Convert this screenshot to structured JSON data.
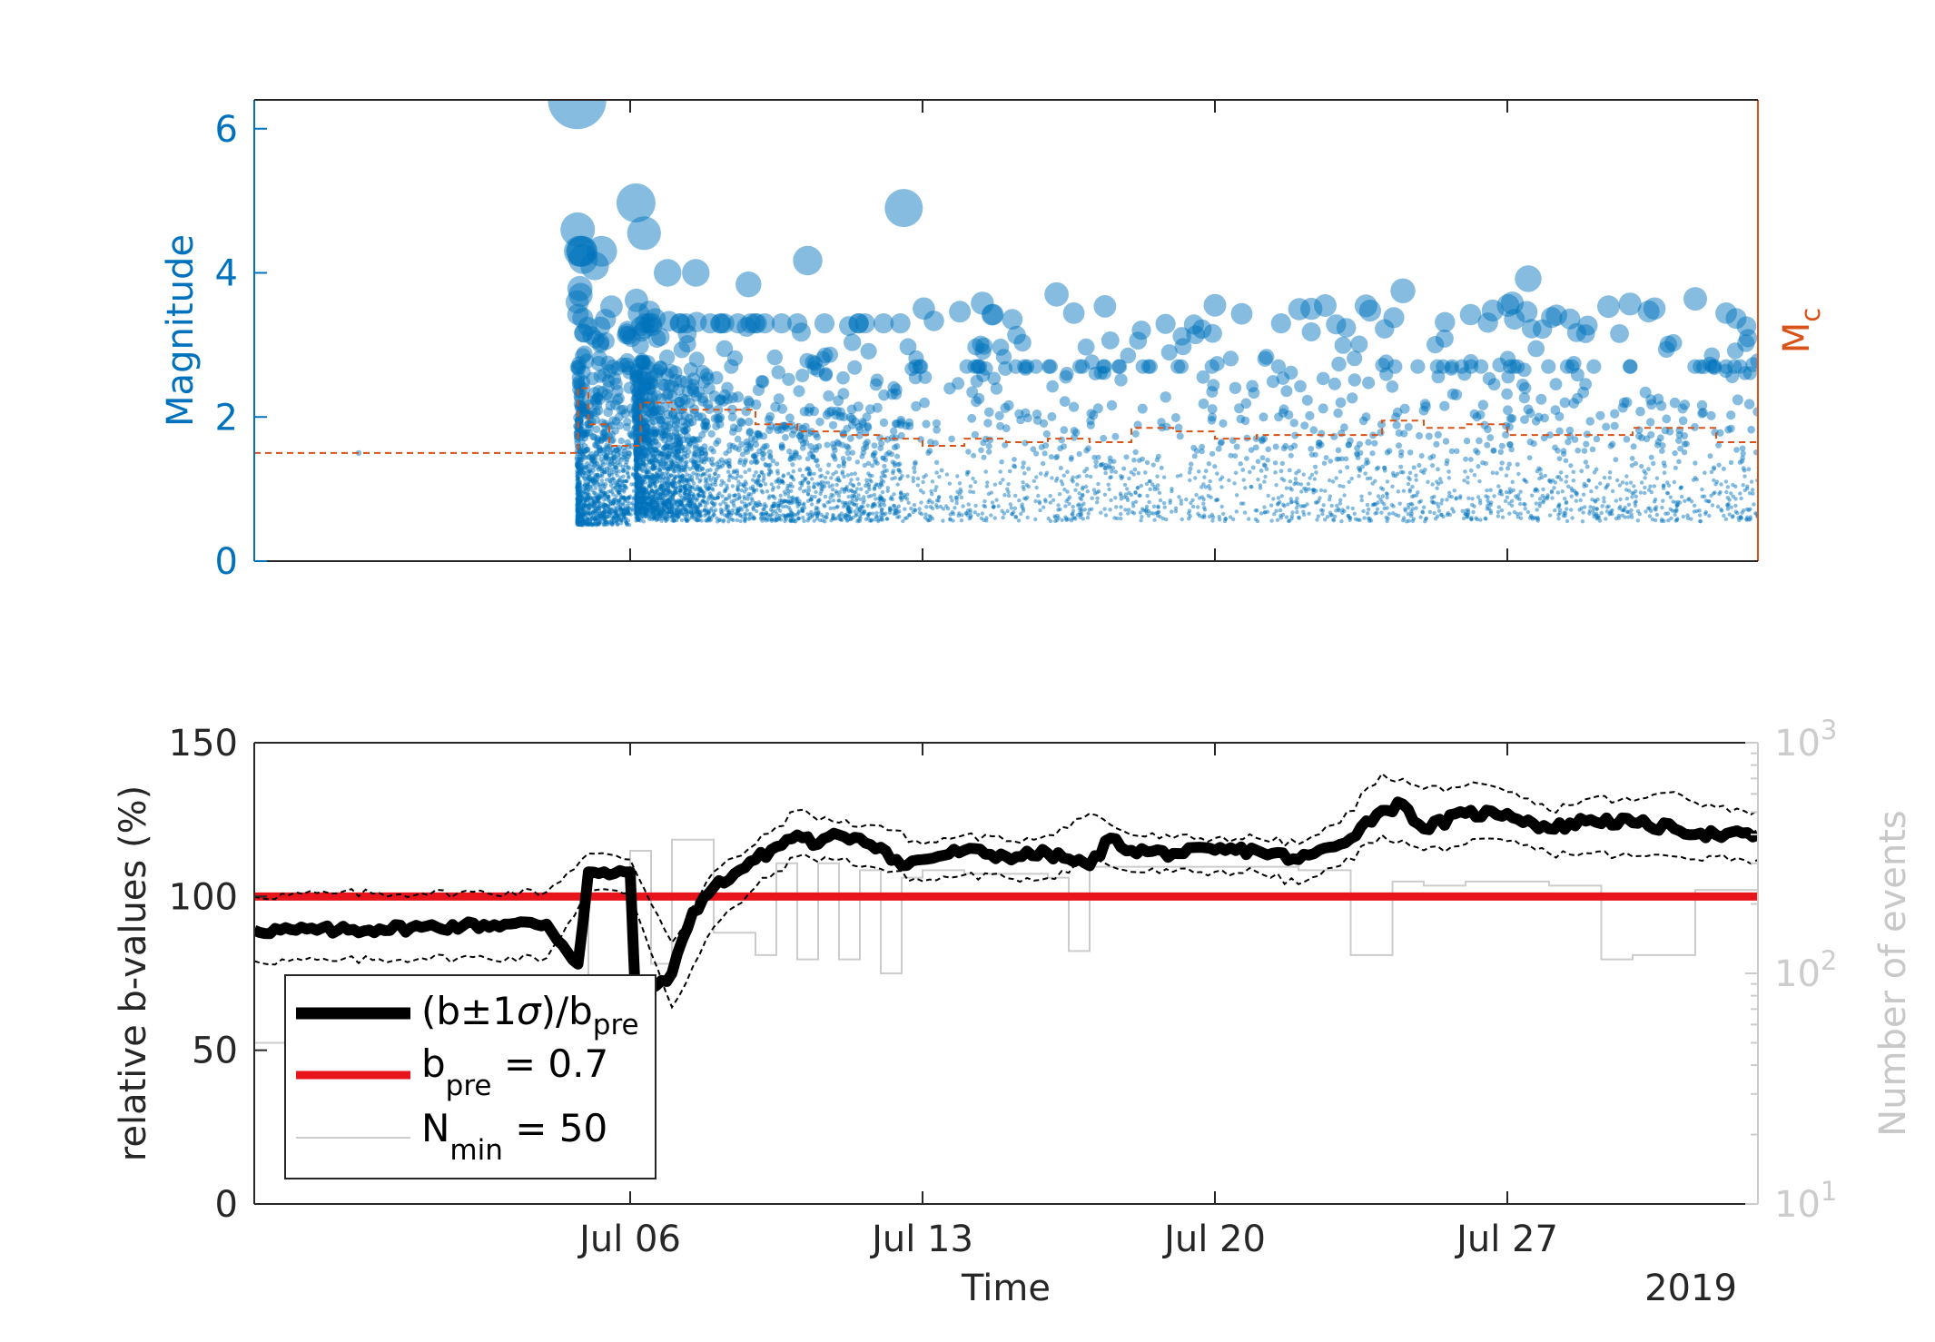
{
  "colors": {
    "magnitude": "#0072bd",
    "mc": "#d95319",
    "b_value": "#000000",
    "b_pre": "#e8141b",
    "n_events": "#cccccc",
    "axis_dark": "#262626"
  },
  "chart_data": [
    {
      "type": "scatter",
      "panel": "top",
      "ylabel": "Magnitude",
      "y2label": "M",
      "y2label_sub": "c",
      "ylim": [
        0,
        6.4
      ],
      "yticks": [
        "0",
        "2",
        "4",
        "6"
      ],
      "xlim": [
        "2019-06-27",
        "2019-08-02"
      ],
      "x_tick_labels_shown": false,
      "series": [
        {
          "role": "earthquake_magnitudes",
          "marker": "circle, size proportional to magnitude, semi-transparent",
          "notable_points": [
            {
              "x": "2019-07-04T17:33",
              "y": 6.4
            },
            {
              "x": "2019-07-06T03:19",
              "y": 4.97
            },
            {
              "x": "2019-07-04T17:50",
              "y": 4.6
            },
            {
              "x": "2019-07-06T08:00",
              "y": 4.55
            },
            {
              "x": "2019-07-12T13:11",
              "y": 4.9
            },
            {
              "x": "2019-07-10T06:00",
              "y": 4.17
            },
            {
              "x": "2019-07-08T20:00",
              "y": 3.84
            },
            {
              "x": "2019-07-16T05:00",
              "y": 3.7
            },
            {
              "x": "2019-07-24T12:00",
              "y": 3.75
            },
            {
              "x": "2019-07-27T12:00",
              "y": 3.92
            },
            {
              "x": "2019-07-31T12:00",
              "y": 3.64
            },
            {
              "x": "2019-07-20T00:00",
              "y": 3.55
            },
            {
              "x": "2019-07-21T14:00",
              "y": 3.3
            },
            {
              "x": "2019-06-29T12:00",
              "y": 1.5
            }
          ],
          "clusters": [
            {
              "x_range": [
                "2019-07-04T17",
                "2019-07-05T12"
              ],
              "y_range": [
                0.5,
                4.6
              ]
            },
            {
              "x_range": [
                "2019-07-06T03",
                "2019-07-12T12"
              ],
              "y_range": [
                0.5,
                3.8
              ]
            },
            {
              "x_range": [
                "2019-07-12T12",
                "2019-08-02"
              ],
              "y_range": [
                0.5,
                3.0
              ]
            }
          ]
        },
        {
          "role": "completeness_magnitude_Mc",
          "style": "dashed",
          "x": [
            "2019-06-27",
            "2019-07-04T17",
            "2019-07-04T18",
            "2019-07-05",
            "2019-07-05T12",
            "2019-07-06T03",
            "2019-07-06T06",
            "2019-07-07",
            "2019-07-08",
            "2019-07-09",
            "2019-07-10",
            "2019-07-11",
            "2019-07-12",
            "2019-07-13",
            "2019-07-14",
            "2019-07-15",
            "2019-07-16",
            "2019-07-17",
            "2019-07-18",
            "2019-07-19",
            "2019-07-20",
            "2019-07-21",
            "2019-07-22",
            "2019-07-23",
            "2019-07-24",
            "2019-07-25",
            "2019-07-26",
            "2019-07-27",
            "2019-07-28",
            "2019-07-29",
            "2019-07-30",
            "2019-07-31",
            "2019-08-01",
            "2019-08-02"
          ],
          "y": [
            1.5,
            1.5,
            2.4,
            1.9,
            1.6,
            1.6,
            2.2,
            2.1,
            2.1,
            1.9,
            1.8,
            1.75,
            1.7,
            1.6,
            1.7,
            1.65,
            1.7,
            1.65,
            1.85,
            1.8,
            1.7,
            1.75,
            1.75,
            1.75,
            1.95,
            1.85,
            1.9,
            1.75,
            1.75,
            1.75,
            1.85,
            1.85,
            1.65,
            1.6
          ]
        }
      ]
    },
    {
      "type": "line",
      "panel": "bottom",
      "xlabel": "Time",
      "year_label": "2019",
      "x_ticks": [
        "Jul 06",
        "Jul 13",
        "Jul 20",
        "Jul 27"
      ],
      "ylabel": "relative b-values (%)",
      "ylim": [
        0,
        150
      ],
      "yticks": [
        "0",
        "50",
        "100",
        "150"
      ],
      "y2label": "Number of events",
      "y2scale": "log",
      "y2lim": [
        10,
        1000
      ],
      "y2ticks": [
        {
          "base": "10",
          "exp": "1"
        },
        {
          "base": "10",
          "exp": "2"
        },
        {
          "base": "10",
          "exp": "3"
        }
      ],
      "xlim": [
        "2019-06-27",
        "2019-08-02"
      ],
      "legend": {
        "placement": "bottom-left",
        "entries": [
          {
            "pre": "(b±1",
            "sym": "σ",
            "mid": ")/b",
            "sub": "pre",
            "post": ""
          },
          {
            "pre": "b",
            "sym": "",
            "mid": "",
            "sub": "pre",
            "post": " = 0.7"
          },
          {
            "pre": "N",
            "sym": "",
            "mid": "",
            "sub": "min",
            "post": " = 50"
          }
        ]
      },
      "series": [
        {
          "role": "relative_b_value",
          "x": [
            "2019-06-27",
            "2019-06-28",
            "2019-06-29",
            "2019-06-30",
            "2019-07-01",
            "2019-07-02",
            "2019-07-03",
            "2019-07-04",
            "2019-07-04T18",
            "2019-07-05",
            "2019-07-05T12",
            "2019-07-06",
            "2019-07-06T04",
            "2019-07-06T12",
            "2019-07-07",
            "2019-07-07T12",
            "2019-07-08",
            "2019-07-09",
            "2019-07-10",
            "2019-07-10T12",
            "2019-07-11",
            "2019-07-11T12",
            "2019-07-12",
            "2019-07-12T12",
            "2019-07-13",
            "2019-07-14",
            "2019-07-15",
            "2019-07-16",
            "2019-07-17",
            "2019-07-17T12",
            "2019-07-18",
            "2019-07-19",
            "2019-07-20",
            "2019-07-21",
            "2019-07-22",
            "2019-07-23",
            "2019-07-24",
            "2019-07-24T12",
            "2019-07-25",
            "2019-07-26",
            "2019-07-27",
            "2019-07-28",
            "2019-07-29",
            "2019-07-30",
            "2019-07-31",
            "2019-08-01",
            "2019-08-02"
          ],
          "y": [
            89,
            89,
            89,
            89.5,
            90,
            90.5,
            91,
            91,
            78,
            108,
            107,
            108,
            55,
            70,
            75,
            95,
            103,
            112,
            120,
            117,
            120,
            119,
            116,
            110,
            112,
            115,
            113,
            114,
            110,
            119,
            115,
            114,
            115,
            115,
            112,
            117,
            128,
            130,
            122,
            127,
            127,
            122,
            125,
            124,
            122,
            120,
            120
          ]
        },
        {
          "role": "upper_1sigma",
          "style": "dashed",
          "x": [
            "2019-06-27",
            "2019-06-29",
            "2019-07-01",
            "2019-07-04",
            "2019-07-05",
            "2019-07-06",
            "2019-07-07",
            "2019-07-08",
            "2019-07-09",
            "2019-07-10",
            "2019-07-11",
            "2019-07-12",
            "2019-07-13",
            "2019-07-14",
            "2019-07-15",
            "2019-07-16",
            "2019-07-17",
            "2019-07-18",
            "2019-07-19",
            "2019-07-20",
            "2019-07-21",
            "2019-07-22",
            "2019-07-23",
            "2019-07-24",
            "2019-07-25",
            "2019-07-26",
            "2019-07-27",
            "2019-07-28",
            "2019-07-29",
            "2019-07-30",
            "2019-07-31",
            "2019-08-01",
            "2019-08-02"
          ],
          "y": [
            100,
            101,
            101,
            101.5,
            114,
            112,
            85,
            108,
            117,
            128,
            124,
            123,
            117,
            120,
            118,
            120,
            127,
            120,
            119,
            119,
            119,
            117,
            124,
            140,
            135,
            136,
            134,
            128,
            132,
            131,
            134,
            129,
            128
          ]
        },
        {
          "role": "lower_1sigma",
          "style": "dashed",
          "x": [
            "2019-06-27",
            "2019-06-29",
            "2019-07-01",
            "2019-07-04",
            "2019-07-05",
            "2019-07-06",
            "2019-07-07",
            "2019-07-08",
            "2019-07-09",
            "2019-07-10",
            "2019-07-11",
            "2019-07-12",
            "2019-07-13",
            "2019-07-14",
            "2019-07-15",
            "2019-07-16",
            "2019-07-17",
            "2019-07-18",
            "2019-07-19",
            "2019-07-20",
            "2019-07-21",
            "2019-07-22",
            "2019-07-23",
            "2019-07-24",
            "2019-07-25",
            "2019-07-26",
            "2019-07-27",
            "2019-07-28",
            "2019-07-29",
            "2019-07-30",
            "2019-07-31",
            "2019-08-01",
            "2019-08-02"
          ],
          "y": [
            79,
            79,
            80,
            80,
            102,
            101,
            64,
            90,
            103,
            113,
            112,
            109,
            105,
            107,
            106,
            106,
            112,
            108,
            108,
            108,
            108,
            104,
            110,
            120,
            115,
            117,
            118,
            114,
            114,
            113,
            113,
            113,
            112
          ]
        },
        {
          "role": "b_pre_reference",
          "x": [
            "2019-06-27",
            "2019-08-02"
          ],
          "y": [
            100,
            100
          ]
        },
        {
          "role": "number_of_events",
          "axis": "right_log",
          "x": [
            "2019-06-27",
            "2019-07-04T17",
            "2019-07-05",
            "2019-07-06",
            "2019-07-06T12",
            "2019-07-07",
            "2019-07-08",
            "2019-07-09",
            "2019-07-09T12",
            "2019-07-10",
            "2019-07-10T12",
            "2019-07-11",
            "2019-07-11T12",
            "2019-07-12",
            "2019-07-12T12",
            "2019-07-13",
            "2019-07-14",
            "2019-07-16",
            "2019-07-16T12",
            "2019-07-17",
            "2019-07-20",
            "2019-07-22",
            "2019-07-23",
            "2019-07-23T06",
            "2019-07-24",
            "2019-07-24T06",
            "2019-07-25",
            "2019-07-26",
            "2019-07-28",
            "2019-07-29",
            "2019-07-29T06",
            "2019-07-30",
            "2019-07-31",
            "2019-07-31T12",
            "2019-08-02"
          ],
          "y": [
            50,
            50,
            280,
            340,
            110,
            380,
            150,
            120,
            300,
            115,
            300,
            115,
            280,
            100,
            260,
            280,
            270,
            260,
            125,
            290,
            290,
            280,
            280,
            120,
            120,
            250,
            240,
            250,
            240,
            240,
            115,
            120,
            120,
            230,
            230
          ]
        }
      ]
    }
  ]
}
